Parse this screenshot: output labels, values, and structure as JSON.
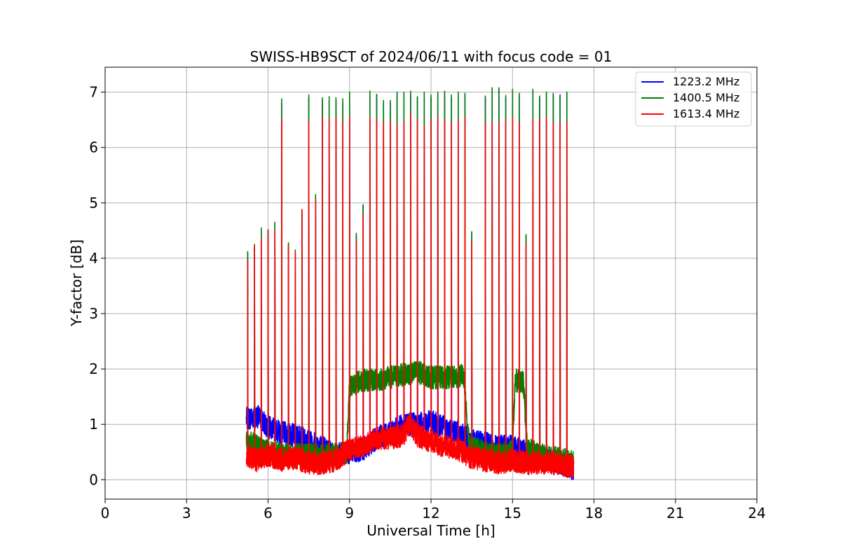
{
  "chart_data": {
    "type": "line",
    "title": "SWISS-HB9SCT of 2024/06/11 with focus code = 01",
    "xlabel": "Universal Time [h]",
    "ylabel": "Y-factor [dB]",
    "xlim": [
      0,
      24
    ],
    "ylim": [
      -0.35,
      7.45
    ],
    "xticks": [
      0,
      3,
      6,
      9,
      12,
      15,
      18,
      21,
      24
    ],
    "yticks": [
      0,
      1,
      2,
      3,
      4,
      5,
      6,
      7
    ],
    "grid": true,
    "legend_position": "top-right",
    "data_time_range_h": [
      5.2,
      17.25
    ],
    "series": [
      {
        "name": "1223.2 MHz",
        "color": "#0000ff",
        "baseline_anchors": [
          [
            5.2,
            1.1
          ],
          [
            5.6,
            1.15
          ],
          [
            6.0,
            0.95
          ],
          [
            6.5,
            0.85
          ],
          [
            7.0,
            0.8
          ],
          [
            7.5,
            0.7
          ],
          [
            8.0,
            0.6
          ],
          [
            8.5,
            0.45
          ],
          [
            9.0,
            0.5
          ],
          [
            9.5,
            0.55
          ],
          [
            10.0,
            0.75
          ],
          [
            10.5,
            0.85
          ],
          [
            11.0,
            1.0
          ],
          [
            11.5,
            1.0
          ],
          [
            12.0,
            1.05
          ],
          [
            12.5,
            0.95
          ],
          [
            13.0,
            0.85
          ],
          [
            13.5,
            0.7
          ],
          [
            14.0,
            0.65
          ],
          [
            14.5,
            0.6
          ],
          [
            15.0,
            0.6
          ],
          [
            15.5,
            0.5
          ],
          [
            16.0,
            0.4
          ],
          [
            16.5,
            0.35
          ],
          [
            17.0,
            0.25
          ],
          [
            17.25,
            0.2
          ]
        ],
        "peaks": [
          [
            5.25,
            4.1
          ],
          [
            5.5,
            4.2
          ],
          [
            5.75,
            4.5
          ],
          [
            6.0,
            4.5
          ],
          [
            6.25,
            4.6
          ],
          [
            6.5,
            6.8
          ],
          [
            6.75,
            4.25
          ],
          [
            7.0,
            4.1
          ],
          [
            7.25,
            4.85
          ],
          [
            7.5,
            6.9
          ],
          [
            7.75,
            5.1
          ],
          [
            8.0,
            6.85
          ],
          [
            8.25,
            6.85
          ],
          [
            8.5,
            6.85
          ],
          [
            8.75,
            6.8
          ],
          [
            9.0,
            6.95
          ],
          [
            9.25,
            4.4
          ],
          [
            9.5,
            4.95
          ],
          [
            9.75,
            6.95
          ],
          [
            10.0,
            6.95
          ],
          [
            10.25,
            6.8
          ],
          [
            10.5,
            6.8
          ],
          [
            10.75,
            6.95
          ],
          [
            11.0,
            6.95
          ],
          [
            11.25,
            6.95
          ],
          [
            11.5,
            6.9
          ],
          [
            11.75,
            6.95
          ],
          [
            12.0,
            6.9
          ],
          [
            12.25,
            6.95
          ],
          [
            12.5,
            6.95
          ],
          [
            12.75,
            6.9
          ],
          [
            13.0,
            6.95
          ],
          [
            13.25,
            6.95
          ],
          [
            13.5,
            4.45
          ],
          [
            14.0,
            6.9
          ],
          [
            14.25,
            7.05
          ],
          [
            14.5,
            7.05
          ],
          [
            14.75,
            6.9
          ],
          [
            15.0,
            7.0
          ],
          [
            15.25,
            6.95
          ],
          [
            15.5,
            4.4
          ],
          [
            15.75,
            7.0
          ],
          [
            16.0,
            6.9
          ],
          [
            16.25,
            7.0
          ],
          [
            16.5,
            6.95
          ],
          [
            16.75,
            6.95
          ],
          [
            17.0,
            7.0
          ]
        ]
      },
      {
        "name": "1400.5 MHz",
        "color": "#008000",
        "baseline_anchors": [
          [
            5.2,
            0.7
          ],
          [
            5.6,
            0.6
          ],
          [
            6.0,
            0.5
          ],
          [
            6.5,
            0.45
          ],
          [
            7.0,
            0.45
          ],
          [
            7.5,
            0.45
          ],
          [
            8.0,
            0.45
          ],
          [
            8.5,
            0.45
          ],
          [
            8.9,
            0.5
          ],
          [
            9.0,
            1.7
          ],
          [
            9.5,
            1.8
          ],
          [
            10.0,
            1.8
          ],
          [
            10.5,
            1.85
          ],
          [
            11.0,
            1.9
          ],
          [
            11.5,
            1.95
          ],
          [
            12.0,
            1.85
          ],
          [
            12.5,
            1.85
          ],
          [
            13.0,
            1.85
          ],
          [
            13.2,
            1.9
          ],
          [
            13.4,
            0.6
          ],
          [
            14.0,
            0.5
          ],
          [
            14.5,
            0.45
          ],
          [
            15.0,
            0.5
          ],
          [
            15.1,
            1.8
          ],
          [
            15.4,
            1.75
          ],
          [
            15.55,
            0.55
          ],
          [
            16.0,
            0.45
          ],
          [
            16.5,
            0.4
          ],
          [
            17.0,
            0.35
          ],
          [
            17.25,
            0.3
          ]
        ],
        "peaks": [
          [
            5.25,
            4.12
          ],
          [
            5.5,
            4.25
          ],
          [
            5.75,
            4.55
          ],
          [
            6.0,
            4.52
          ],
          [
            6.25,
            4.65
          ],
          [
            6.5,
            6.88
          ],
          [
            6.75,
            4.28
          ],
          [
            7.0,
            4.15
          ],
          [
            7.25,
            4.88
          ],
          [
            7.5,
            6.95
          ],
          [
            7.75,
            5.15
          ],
          [
            8.0,
            6.9
          ],
          [
            8.25,
            6.92
          ],
          [
            8.5,
            6.9
          ],
          [
            8.75,
            6.88
          ],
          [
            9.0,
            7.0
          ],
          [
            9.25,
            4.45
          ],
          [
            9.5,
            4.97
          ],
          [
            9.75,
            7.02
          ],
          [
            10.0,
            6.96
          ],
          [
            10.25,
            6.85
          ],
          [
            10.5,
            6.85
          ],
          [
            10.75,
            7.0
          ],
          [
            11.0,
            7.0
          ],
          [
            11.25,
            7.02
          ],
          [
            11.5,
            6.92
          ],
          [
            11.75,
            7.0
          ],
          [
            12.0,
            6.95
          ],
          [
            12.25,
            7.0
          ],
          [
            12.5,
            7.02
          ],
          [
            12.75,
            6.95
          ],
          [
            13.0,
            7.0
          ],
          [
            13.25,
            6.98
          ],
          [
            13.5,
            4.48
          ],
          [
            14.0,
            6.93
          ],
          [
            14.25,
            7.08
          ],
          [
            14.5,
            7.08
          ],
          [
            14.75,
            6.94
          ],
          [
            15.0,
            7.05
          ],
          [
            15.25,
            6.98
          ],
          [
            15.5,
            4.43
          ],
          [
            15.75,
            7.05
          ],
          [
            16.0,
            6.93
          ],
          [
            16.25,
            7.0
          ],
          [
            16.5,
            6.98
          ],
          [
            16.75,
            6.92
          ],
          [
            17.0,
            7.0
          ]
        ]
      },
      {
        "name": "1613.4 MHz",
        "color": "#ff0000",
        "baseline_anchors": [
          [
            5.2,
            0.45
          ],
          [
            5.6,
            0.35
          ],
          [
            6.0,
            0.45
          ],
          [
            6.5,
            0.35
          ],
          [
            7.0,
            0.4
          ],
          [
            7.5,
            0.3
          ],
          [
            8.0,
            0.3
          ],
          [
            8.5,
            0.35
          ],
          [
            9.0,
            0.55
          ],
          [
            9.5,
            0.6
          ],
          [
            10.0,
            0.75
          ],
          [
            10.5,
            0.75
          ],
          [
            11.0,
            0.8
          ],
          [
            11.2,
            1.0
          ],
          [
            11.5,
            0.8
          ],
          [
            12.0,
            0.7
          ],
          [
            12.5,
            0.6
          ],
          [
            13.0,
            0.55
          ],
          [
            13.5,
            0.4
          ],
          [
            14.0,
            0.35
          ],
          [
            14.5,
            0.3
          ],
          [
            15.0,
            0.35
          ],
          [
            15.5,
            0.3
          ],
          [
            16.0,
            0.3
          ],
          [
            16.5,
            0.3
          ],
          [
            17.0,
            0.25
          ],
          [
            17.25,
            0.25
          ]
        ],
        "peaks": [
          [
            5.25,
            3.95
          ],
          [
            5.5,
            4.22
          ],
          [
            5.75,
            4.35
          ],
          [
            6.0,
            4.5
          ],
          [
            6.25,
            4.5
          ],
          [
            6.5,
            6.5
          ],
          [
            6.75,
            4.2
          ],
          [
            7.0,
            4.1
          ],
          [
            7.25,
            4.88
          ],
          [
            7.5,
            6.48
          ],
          [
            7.75,
            5.05
          ],
          [
            8.0,
            6.55
          ],
          [
            8.25,
            6.5
          ],
          [
            8.5,
            6.55
          ],
          [
            8.75,
            6.48
          ],
          [
            9.0,
            6.55
          ],
          [
            9.25,
            4.3
          ],
          [
            9.5,
            4.8
          ],
          [
            9.75,
            6.55
          ],
          [
            10.0,
            6.52
          ],
          [
            10.25,
            6.45
          ],
          [
            10.5,
            6.48
          ],
          [
            10.75,
            6.4
          ],
          [
            11.0,
            6.45
          ],
          [
            11.25,
            6.6
          ],
          [
            11.5,
            6.5
          ],
          [
            11.75,
            6.4
          ],
          [
            12.0,
            6.5
          ],
          [
            12.25,
            6.55
          ],
          [
            12.5,
            6.5
          ],
          [
            12.75,
            6.45
          ],
          [
            13.0,
            6.5
          ],
          [
            13.25,
            6.55
          ],
          [
            13.5,
            4.3
          ],
          [
            14.0,
            6.45
          ],
          [
            14.25,
            6.45
          ],
          [
            14.5,
            6.45
          ],
          [
            14.75,
            6.5
          ],
          [
            15.0,
            6.55
          ],
          [
            15.25,
            6.45
          ],
          [
            15.5,
            4.25
          ],
          [
            15.75,
            6.5
          ],
          [
            16.0,
            6.5
          ],
          [
            16.25,
            6.55
          ],
          [
            16.5,
            6.45
          ],
          [
            16.75,
            6.45
          ],
          [
            17.0,
            6.45
          ]
        ]
      }
    ]
  }
}
